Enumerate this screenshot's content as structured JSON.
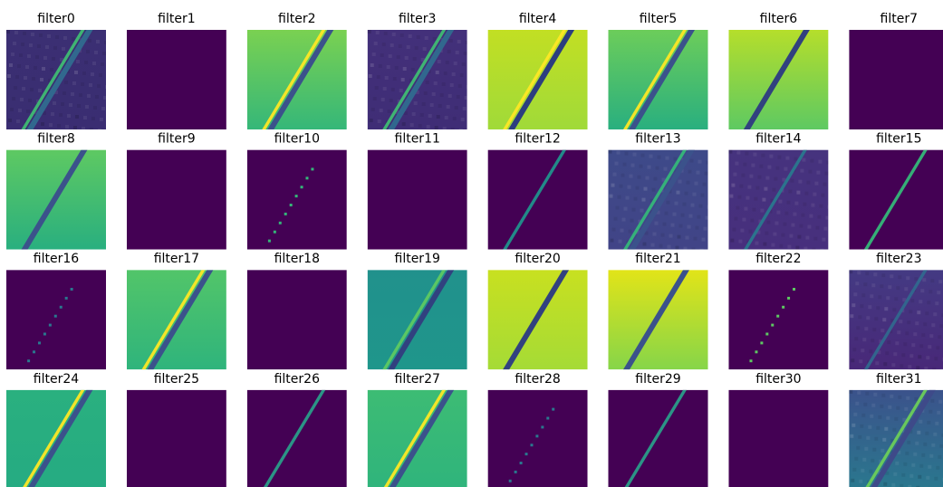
{
  "filters": [
    {
      "title": "filter0"
    },
    {
      "title": "filter1"
    },
    {
      "title": "filter2"
    },
    {
      "title": "filter3"
    },
    {
      "title": "filter4"
    },
    {
      "title": "filter5"
    },
    {
      "title": "filter6"
    },
    {
      "title": "filter7"
    },
    {
      "title": "filter8"
    },
    {
      "title": "filter9"
    },
    {
      "title": "filter10"
    },
    {
      "title": "filter11"
    },
    {
      "title": "filter12"
    },
    {
      "title": "filter13"
    },
    {
      "title": "filter14"
    },
    {
      "title": "filter15"
    },
    {
      "title": "filter16"
    },
    {
      "title": "filter17"
    },
    {
      "title": "filter18"
    },
    {
      "title": "filter19"
    },
    {
      "title": "filter20"
    },
    {
      "title": "filter21"
    },
    {
      "title": "filter22"
    },
    {
      "title": "filter23"
    },
    {
      "title": "filter24"
    },
    {
      "title": "filter25"
    },
    {
      "title": "filter26"
    },
    {
      "title": "filter27"
    },
    {
      "title": "filter28"
    },
    {
      "title": "filter29"
    },
    {
      "title": "filter30"
    },
    {
      "title": "filter31"
    }
  ]
}
